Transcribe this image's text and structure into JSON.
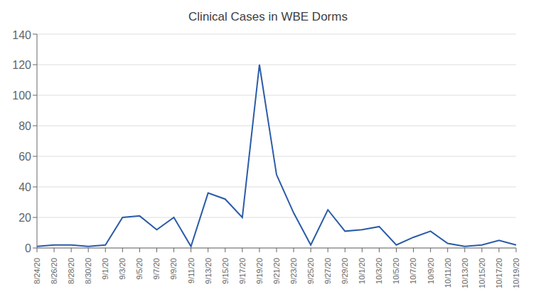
{
  "chart_data": {
    "type": "line",
    "title": "Clinical Cases in WBE Dorms",
    "categories": [
      "8/24/20",
      "8/26/20",
      "8/28/20",
      "8/30/20",
      "9/1/20",
      "9/3/20",
      "9/5/20",
      "9/7/20",
      "9/9/20",
      "9/11/20",
      "9/13/20",
      "9/15/20",
      "9/17/20",
      "9/19/20",
      "9/21/20",
      "9/23/20",
      "9/25/20",
      "9/27/20",
      "9/29/20",
      "10/1/20",
      "10/3/20",
      "10/5/20",
      "10/7/20",
      "10/9/20",
      "10/11/20",
      "10/13/20",
      "10/15/20",
      "10/17/20",
      "10/19/20"
    ],
    "values": [
      1,
      2,
      2,
      1,
      2,
      20,
      21,
      12,
      20,
      1,
      36,
      32,
      20,
      120,
      48,
      23,
      2,
      25,
      11,
      12,
      14,
      2,
      7,
      11,
      3,
      1,
      2,
      5,
      2
    ],
    "color": "#2b5ba8",
    "ylim": [
      0,
      140
    ],
    "yticks": [
      0,
      20,
      40,
      60,
      80,
      100,
      120,
      140
    ],
    "grid": true
  }
}
